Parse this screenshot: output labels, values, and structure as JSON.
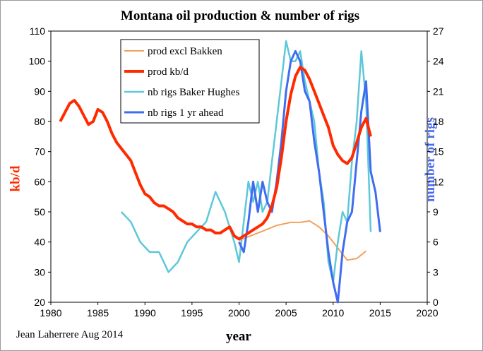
{
  "chart_data": {
    "type": "line",
    "title": "Montana oil production & number of rigs",
    "xlabel": "year",
    "ylabel_left": "kb/d",
    "ylabel_right": "number of rigs",
    "credit": "Jean Laherrere Aug 2014",
    "xlim": [
      1980,
      2020
    ],
    "ylim_left": [
      20,
      110
    ],
    "ylim_right": [
      0,
      27
    ],
    "x_ticks": [
      "1980",
      "1985",
      "1990",
      "1995",
      "2000",
      "2005",
      "2010",
      "2015",
      "2020"
    ],
    "y_left_ticks": [
      "20",
      "30",
      "40",
      "50",
      "60",
      "70",
      "80",
      "90",
      "100",
      "110"
    ],
    "y_right_ticks": [
      "0",
      "3",
      "6",
      "9",
      "12",
      "15",
      "18",
      "21",
      "24",
      "27"
    ],
    "legend_placement": "top-left",
    "colors": {
      "prod_excl_bakken": "#f5a05a",
      "prod": "#ff2a00",
      "rigs_bh": "#5ec8d8",
      "rigs_ahead": "#3f6cf0",
      "title_left_axis": "#ff2a00",
      "title_right_axis": "#4a6bf0"
    },
    "series": [
      {
        "name": "prod excl Bakken",
        "axis": "left",
        "x": [
          2000.0,
          2002.0,
          2004.0,
          2005.5,
          2006.5,
          2007.5,
          2008.5,
          2009.5,
          2010.5,
          2011.5,
          2012.5,
          2013.5
        ],
        "y": [
          40.5,
          43.0,
          45.5,
          46.5,
          46.5,
          47.0,
          45.0,
          42.0,
          38.0,
          34.0,
          34.5,
          37.0
        ]
      },
      {
        "name": "prod kb/d",
        "axis": "left",
        "x": [
          1981.0,
          1981.5,
          1982.0,
          1982.5,
          1983.0,
          1983.5,
          1984.0,
          1984.5,
          1985.0,
          1985.5,
          1986.0,
          1986.5,
          1987.0,
          1987.5,
          1988.0,
          1988.5,
          1989.0,
          1989.5,
          1990.0,
          1990.5,
          1991.0,
          1991.5,
          1992.0,
          1992.5,
          1993.0,
          1993.5,
          1994.0,
          1994.5,
          1995.0,
          1995.5,
          1996.0,
          1996.5,
          1997.0,
          1997.5,
          1998.0,
          1998.5,
          1999.0,
          1999.5,
          2000.0,
          2000.5,
          2001.0,
          2001.5,
          2002.0,
          2002.5,
          2003.0,
          2003.5,
          2004.0,
          2004.5,
          2005.0,
          2005.5,
          2006.0,
          2006.5,
          2007.0,
          2007.5,
          2008.0,
          2008.5,
          2009.0,
          2009.5,
          2010.0,
          2010.5,
          2011.0,
          2011.5,
          2012.0,
          2012.5,
          2013.0,
          2013.5,
          2014.0
        ],
        "y": [
          80.0,
          83.0,
          86.0,
          87.0,
          85.0,
          82.0,
          79.0,
          80.0,
          84.0,
          83.0,
          80.0,
          76.0,
          73.0,
          71.0,
          69.0,
          67.0,
          63.0,
          59.0,
          56.0,
          55.0,
          53.0,
          52.0,
          52.0,
          51.0,
          50.0,
          48.0,
          47.0,
          46.0,
          46.0,
          45.0,
          45.0,
          44.0,
          44.0,
          43.0,
          43.0,
          44.0,
          45.0,
          42.0,
          41.0,
          42.0,
          43.0,
          44.0,
          45.0,
          46.0,
          48.0,
          52.0,
          58.0,
          68.0,
          80.0,
          89.0,
          95.0,
          98.0,
          97.0,
          94.0,
          90.0,
          86.0,
          82.0,
          78.0,
          72.0,
          69.0,
          67.0,
          66.0,
          68.0,
          73.0,
          78.0,
          81.0,
          75.0
        ]
      },
      {
        "name": "nb rigs Baker Hughes",
        "axis": "right",
        "x": [
          1987.5,
          1988.5,
          1989.5,
          1990.5,
          1991.5,
          1992.5,
          1993.5,
          1994.5,
          1995.5,
          1996.5,
          1997.5,
          1998.5,
          1999.5,
          2000.0,
          2000.5,
          2001.0,
          2001.5,
          2002.0,
          2002.5,
          2003.0,
          2003.5,
          2004.0,
          2004.5,
          2005.0,
          2005.5,
          2006.0,
          2006.5,
          2007.0,
          2007.5,
          2008.0,
          2008.5,
          2009.0,
          2009.5,
          2010.0,
          2010.5,
          2011.0,
          2011.5,
          2012.0,
          2012.5,
          2013.0,
          2013.5,
          2014.0
        ],
        "y": [
          9.0,
          8.0,
          6.0,
          5.0,
          5.0,
          3.0,
          4.0,
          6.0,
          7.0,
          8.0,
          11.0,
          9.0,
          6.0,
          4.0,
          8.0,
          12.0,
          10.0,
          12.0,
          9.0,
          10.0,
          14.0,
          18.0,
          22.0,
          26.0,
          24.0,
          24.0,
          25.0,
          22.0,
          20.0,
          18.0,
          13.0,
          10.0,
          4.0,
          2.0,
          6.0,
          9.0,
          8.0,
          14.0,
          18.0,
          25.0,
          20.0,
          7.0
        ]
      },
      {
        "name": "nb rigs 1 yr ahead",
        "axis": "right",
        "x": [
          2000.0,
          2000.5,
          2001.0,
          2001.5,
          2002.0,
          2002.5,
          2003.0,
          2003.5,
          2004.0,
          2004.5,
          2005.0,
          2005.5,
          2006.0,
          2006.5,
          2007.0,
          2007.5,
          2008.0,
          2008.5,
          2009.0,
          2009.5,
          2010.0,
          2010.5,
          2011.0,
          2011.5,
          2012.0,
          2012.5,
          2013.0,
          2013.5,
          2014.0,
          2014.5,
          2015.0
        ],
        "y": [
          6.0,
          5.0,
          8.0,
          12.0,
          9.0,
          12.0,
          10.0,
          9.0,
          12.0,
          16.0,
          21.0,
          24.0,
          25.0,
          24.0,
          21.0,
          20.0,
          16.0,
          13.0,
          9.0,
          5.0,
          2.0,
          0.0,
          5.0,
          8.0,
          9.0,
          14.0,
          19.0,
          22.0,
          13.0,
          11.0,
          7.0
        ]
      }
    ]
  }
}
